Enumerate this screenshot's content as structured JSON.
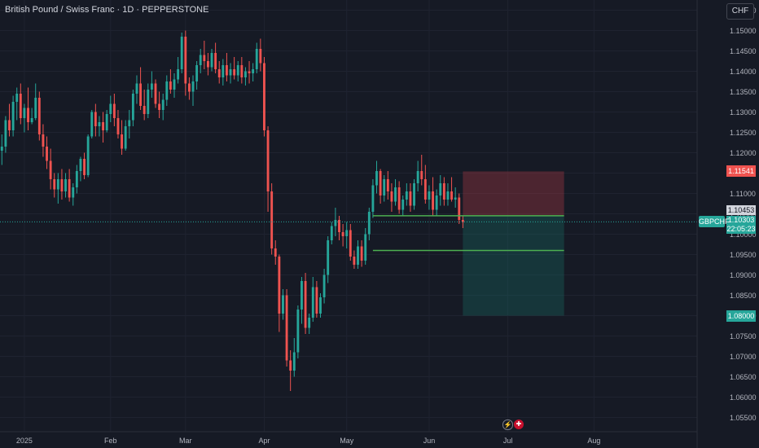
{
  "header": {
    "title": "British Pound / Swiss Franc · 1D · PEPPERSTONE",
    "currency_button": "CHF"
  },
  "colors": {
    "background": "#161a25",
    "up": "#26a69a",
    "down": "#ef5350",
    "grid": "#1f2330",
    "axis_text": "#b2b5be",
    "stop_zone": "rgba(178,60,70,0.35)",
    "target_zone": "rgba(24,120,108,0.30)",
    "level_line": "#4caf50"
  },
  "badges": {
    "stop_price": "1.11541",
    "entry_price": "1.10453",
    "current_price": "1.10303",
    "countdown": "22:05:23",
    "symbol": "GBPCHF",
    "target_price": "1.08000"
  },
  "events": {
    "flash_icon": "flash-icon",
    "flag_icon": "uk-flag-icon"
  },
  "chart_data": {
    "type": "candlestick",
    "symbol": "GBPCHF",
    "timeframe": "1D",
    "ylim": [
      1.0515,
      1.1575
    ],
    "yticks": [
      1.155,
      1.15,
      1.145,
      1.14,
      1.135,
      1.13,
      1.125,
      1.12,
      1.115,
      1.11,
      1.105,
      1.1,
      1.095,
      1.09,
      1.085,
      1.08,
      1.075,
      1.07,
      1.065,
      1.06,
      1.055
    ],
    "ytick_labels": [
      "1.15500",
      "1.15000",
      "1.14500",
      "1.14000",
      "1.13500",
      "1.13000",
      "1.12500",
      "1.12000",
      "1.11500",
      "1.11000",
      "1.10500",
      "1.10000",
      "1.09500",
      "1.09000",
      "1.08500",
      "1.08000",
      "1.07500",
      "1.07000",
      "1.06500",
      "1.06000",
      "1.05500"
    ],
    "xlabels": [
      {
        "label": "2025",
        "bar": 6
      },
      {
        "label": "Feb",
        "bar": 29
      },
      {
        "label": "Mar",
        "bar": 49
      },
      {
        "label": "Apr",
        "bar": 70
      },
      {
        "label": "May",
        "bar": 92
      },
      {
        "label": "Jun",
        "bar": 114
      },
      {
        "label": "Jul",
        "bar": 135
      },
      {
        "label": "Aug",
        "bar": 158
      }
    ],
    "x_domain": [
      -0.5,
      185.5
    ],
    "levels": {
      "stop": 1.11541,
      "entry": 1.10453,
      "current": 1.10303,
      "target": 1.08,
      "lower_line": 1.096,
      "entry_line_from_bar": 99,
      "lower_line_from_bar": 99,
      "zone_from_bar": 123,
      "zone_to_bar": 150
    },
    "candles": [
      [
        1.1205,
        1.1245,
        1.117,
        1.1215
      ],
      [
        1.1215,
        1.129,
        1.12,
        1.128
      ],
      [
        1.128,
        1.132,
        1.124,
        1.1255
      ],
      [
        1.1255,
        1.134,
        1.124,
        1.1325
      ],
      [
        1.1325,
        1.136,
        1.128,
        1.1345
      ],
      [
        1.1345,
        1.137,
        1.127,
        1.1285
      ],
      [
        1.1285,
        1.132,
        1.125,
        1.131
      ],
      [
        1.131,
        1.136,
        1.1255,
        1.1275
      ],
      [
        1.1275,
        1.131,
        1.127,
        1.1285
      ],
      [
        1.1285,
        1.137,
        1.128,
        1.1335
      ],
      [
        1.1335,
        1.135,
        1.123,
        1.1245
      ],
      [
        1.1245,
        1.127,
        1.119,
        1.1215
      ],
      [
        1.1215,
        1.124,
        1.116,
        1.118
      ],
      [
        1.118,
        1.121,
        1.111,
        1.1135
      ],
      [
        1.1135,
        1.115,
        1.109,
        1.111
      ],
      [
        1.111,
        1.115,
        1.1075,
        1.1135
      ],
      [
        1.1135,
        1.116,
        1.1085,
        1.1105
      ],
      [
        1.1105,
        1.115,
        1.109,
        1.1135
      ],
      [
        1.1135,
        1.116,
        1.108,
        1.109
      ],
      [
        1.109,
        1.1125,
        1.107,
        1.1115
      ],
      [
        1.1115,
        1.117,
        1.11,
        1.1155
      ],
      [
        1.1155,
        1.119,
        1.113,
        1.1185
      ],
      [
        1.1185,
        1.12,
        1.1135,
        1.1145
      ],
      [
        1.1145,
        1.1245,
        1.114,
        1.124
      ],
      [
        1.124,
        1.1305,
        1.1235,
        1.13
      ],
      [
        1.13,
        1.132,
        1.124,
        1.1265
      ],
      [
        1.1265,
        1.129,
        1.124,
        1.1275
      ],
      [
        1.1275,
        1.13,
        1.1225,
        1.1255
      ],
      [
        1.1255,
        1.1305,
        1.125,
        1.1295
      ],
      [
        1.1295,
        1.134,
        1.1275,
        1.132
      ],
      [
        1.132,
        1.1345,
        1.1265,
        1.1285
      ],
      [
        1.1285,
        1.1305,
        1.1235,
        1.1245
      ],
      [
        1.1245,
        1.128,
        1.1195,
        1.121
      ],
      [
        1.121,
        1.128,
        1.1205,
        1.1265
      ],
      [
        1.1265,
        1.1305,
        1.1235,
        1.128
      ],
      [
        1.128,
        1.1355,
        1.1265,
        1.1345
      ],
      [
        1.1345,
        1.139,
        1.132,
        1.137
      ],
      [
        1.137,
        1.141,
        1.1305,
        1.1315
      ],
      [
        1.1315,
        1.1355,
        1.128,
        1.1295
      ],
      [
        1.1295,
        1.137,
        1.1285,
        1.1355
      ],
      [
        1.1355,
        1.14,
        1.1335,
        1.137
      ],
      [
        1.137,
        1.138,
        1.131,
        1.132
      ],
      [
        1.132,
        1.135,
        1.1285,
        1.1305
      ],
      [
        1.1305,
        1.1345,
        1.128,
        1.133
      ],
      [
        1.133,
        1.139,
        1.1315,
        1.1375
      ],
      [
        1.1375,
        1.1405,
        1.1345,
        1.1355
      ],
      [
        1.1355,
        1.1395,
        1.1335,
        1.138
      ],
      [
        1.138,
        1.1435,
        1.137,
        1.1405
      ],
      [
        1.1405,
        1.1495,
        1.1395,
        1.1485
      ],
      [
        1.1485,
        1.15,
        1.134,
        1.137
      ],
      [
        1.137,
        1.1385,
        1.133,
        1.135
      ],
      [
        1.135,
        1.139,
        1.1315,
        1.1375
      ],
      [
        1.1375,
        1.1425,
        1.1355,
        1.1415
      ],
      [
        1.1415,
        1.1455,
        1.1395,
        1.144
      ],
      [
        1.144,
        1.1475,
        1.1405,
        1.1425
      ],
      [
        1.1425,
        1.1445,
        1.139,
        1.141
      ],
      [
        1.141,
        1.1455,
        1.14,
        1.1445
      ],
      [
        1.1445,
        1.147,
        1.1395,
        1.1405
      ],
      [
        1.1405,
        1.1425,
        1.137,
        1.1385
      ],
      [
        1.1385,
        1.143,
        1.1365,
        1.1415
      ],
      [
        1.1415,
        1.1445,
        1.1375,
        1.139
      ],
      [
        1.139,
        1.142,
        1.137,
        1.1405
      ],
      [
        1.1405,
        1.1435,
        1.138,
        1.139
      ],
      [
        1.139,
        1.1425,
        1.1375,
        1.1415
      ],
      [
        1.1415,
        1.1435,
        1.137,
        1.1385
      ],
      [
        1.1385,
        1.141,
        1.1365,
        1.14
      ],
      [
        1.14,
        1.1425,
        1.137,
        1.1395
      ],
      [
        1.1395,
        1.142,
        1.1375,
        1.1405
      ],
      [
        1.1405,
        1.147,
        1.1395,
        1.1455
      ],
      [
        1.1455,
        1.148,
        1.14,
        1.142
      ],
      [
        1.142,
        1.1435,
        1.124,
        1.1255
      ],
      [
        1.1255,
        1.1265,
        1.1055,
        1.1105
      ],
      [
        1.1105,
        1.1125,
        1.095,
        1.0965
      ],
      [
        1.0965,
        1.0985,
        1.0925,
        1.0945
      ],
      [
        1.0945,
        1.095,
        1.076,
        1.0805
      ],
      [
        1.0805,
        1.0865,
        1.079,
        1.085
      ],
      [
        1.085,
        1.0865,
        1.0675,
        1.069
      ],
      [
        1.069,
        1.0715,
        1.0615,
        1.0665
      ],
      [
        1.0665,
        1.0745,
        1.065,
        1.071
      ],
      [
        1.071,
        1.0825,
        1.0695,
        1.0815
      ],
      [
        1.0815,
        1.0895,
        1.078,
        1.0885
      ],
      [
        1.0885,
        1.0905,
        1.0755,
        1.077
      ],
      [
        1.077,
        1.0805,
        1.0755,
        1.0795
      ],
      [
        1.0795,
        1.0895,
        1.0785,
        1.087
      ],
      [
        1.087,
        1.0885,
        1.0795,
        1.0805
      ],
      [
        1.0805,
        1.0855,
        1.0795,
        1.0845
      ],
      [
        1.0845,
        1.0915,
        1.083,
        1.09
      ],
      [
        1.09,
        1.0995,
        1.088,
        1.0985
      ],
      [
        1.0985,
        1.103,
        1.0975,
        1.102
      ],
      [
        1.102,
        1.1065,
        1.0995,
        1.1035
      ],
      [
        1.1035,
        1.1045,
        1.0985,
        1.1005
      ],
      [
        1.1005,
        1.1025,
        1.097,
        1.0995
      ],
      [
        1.0995,
        1.103,
        1.0965,
        1.101
      ],
      [
        1.101,
        1.1025,
        1.0935,
        1.0945
      ],
      [
        1.0945,
        1.096,
        1.0915,
        1.0925
      ],
      [
        1.0925,
        1.0985,
        1.0915,
        1.097
      ],
      [
        1.097,
        1.0985,
        1.092,
        1.0935
      ],
      [
        1.0935,
        1.1015,
        1.0925,
        1.1
      ],
      [
        1.1,
        1.1065,
        1.0985,
        1.1055
      ],
      [
        1.1055,
        1.1135,
        1.104,
        1.112
      ],
      [
        1.112,
        1.118,
        1.11,
        1.1155
      ],
      [
        1.1155,
        1.116,
        1.1075,
        1.1095
      ],
      [
        1.1095,
        1.1145,
        1.108,
        1.1135
      ],
      [
        1.1135,
        1.1155,
        1.1085,
        1.1105
      ],
      [
        1.1105,
        1.1125,
        1.1055,
        1.108
      ],
      [
        1.108,
        1.1135,
        1.107,
        1.1115
      ],
      [
        1.1115,
        1.113,
        1.105,
        1.106
      ],
      [
        1.106,
        1.1095,
        1.1045,
        1.1085
      ],
      [
        1.1085,
        1.1125,
        1.107,
        1.1105
      ],
      [
        1.1105,
        1.1125,
        1.1055,
        1.107
      ],
      [
        1.107,
        1.1135,
        1.106,
        1.1125
      ],
      [
        1.1125,
        1.118,
        1.1105,
        1.1155
      ],
      [
        1.1155,
        1.1195,
        1.112,
        1.1135
      ],
      [
        1.1135,
        1.117,
        1.1075,
        1.1085
      ],
      [
        1.1085,
        1.112,
        1.106,
        1.1105
      ],
      [
        1.1105,
        1.114,
        1.1045,
        1.106
      ],
      [
        1.106,
        1.111,
        1.1045,
        1.1095
      ],
      [
        1.1095,
        1.1145,
        1.107,
        1.1125
      ],
      [
        1.1125,
        1.114,
        1.107,
        1.1085
      ],
      [
        1.1085,
        1.1125,
        1.107,
        1.1105
      ],
      [
        1.1105,
        1.114,
        1.108,
        1.1085
      ],
      [
        1.1085,
        1.1115,
        1.1065,
        1.109
      ],
      [
        1.109,
        1.11,
        1.1025,
        1.1035
      ],
      [
        1.1035,
        1.1045,
        1.1015,
        1.103
      ]
    ]
  }
}
